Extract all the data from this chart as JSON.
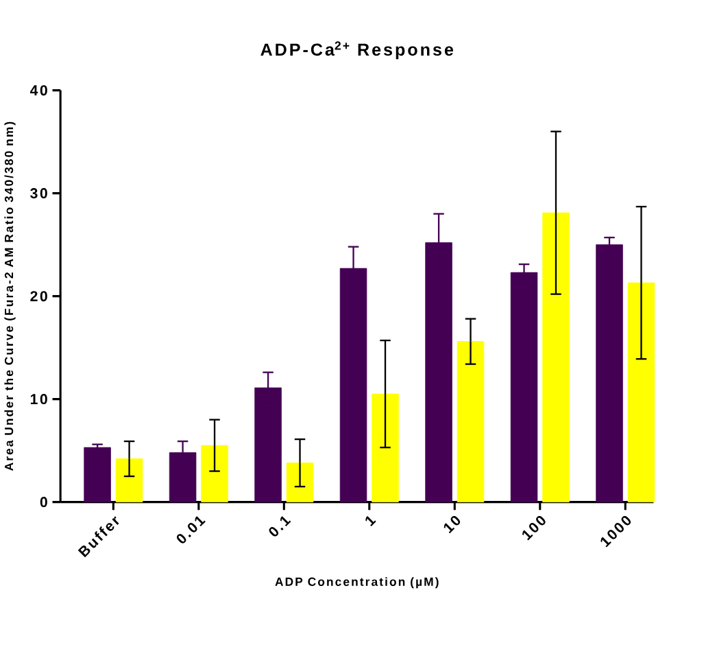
{
  "chart_data": {
    "type": "bar",
    "title": "ADP-Ca$^{2+}$ Response",
    "xlabel": "ADP Concentration (µM)",
    "ylabel": "Area Under the Curve (Fura-2 AM Ratio 340/380 nm)",
    "categories": [
      "Buffer",
      "0.01",
      "0.1",
      "1",
      "10",
      "100",
      "1000"
    ],
    "series": [
      {
        "color": "#440154",
        "values": [
          5.3,
          4.8,
          11.1,
          22.7,
          25.2,
          22.3,
          25.0
        ],
        "errors": [
          0.3,
          1.1,
          1.5,
          2.1,
          2.8,
          0.8,
          0.7
        ]
      },
      {
        "color": "#ffff00",
        "values": [
          4.2,
          5.5,
          3.8,
          10.5,
          15.6,
          28.1,
          21.3
        ],
        "errors": [
          1.7,
          2.5,
          2.3,
          5.2,
          2.2,
          7.9,
          7.4
        ]
      }
    ],
    "ylim": [
      0,
      40
    ],
    "yticks": [
      0,
      10,
      20,
      30,
      40
    ]
  }
}
